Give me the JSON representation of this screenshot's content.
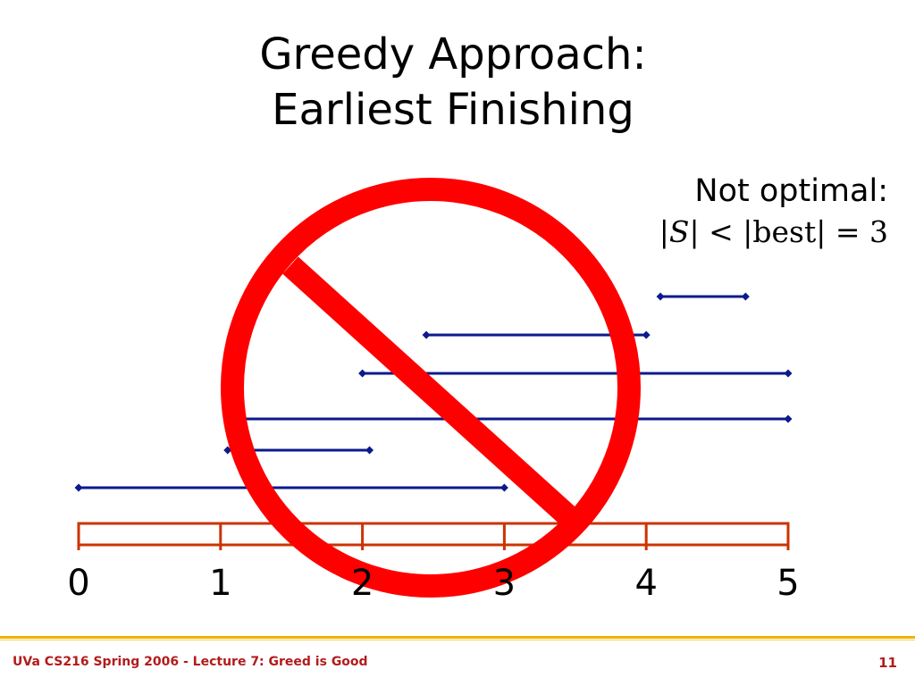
{
  "slide": {
    "title_line1": "Greedy Approach:",
    "title_line2": "Earliest Finishing",
    "note_line1": "Not optimal:",
    "note_s": "S",
    "note_rest": "| < |best| = 3",
    "note_bar": "|"
  },
  "timeline": {
    "axis_min": 0,
    "axis_max": 5,
    "tick_labels": [
      "0",
      "1",
      "2",
      "3",
      "4",
      "5"
    ]
  },
  "intervals": [
    {
      "start": 0,
      "end": 3
    },
    {
      "start": 1.05,
      "end": 2.05
    },
    {
      "start": 1.1,
      "end": 5
    },
    {
      "start": 2,
      "end": 5
    },
    {
      "start": 2.45,
      "end": 4
    },
    {
      "start": 4.1,
      "end": 4.7
    }
  ],
  "colors": {
    "interval": "#0b1a8c",
    "timeline": "#cc3300",
    "prohibition": "#ff0000",
    "footer_text": "#b31b1b",
    "footer_rule": "#f5b000"
  },
  "footer": {
    "course_text": "UVa CS216 Spring 2006 - Lecture 7: Greed is Good",
    "page_number": "11"
  }
}
